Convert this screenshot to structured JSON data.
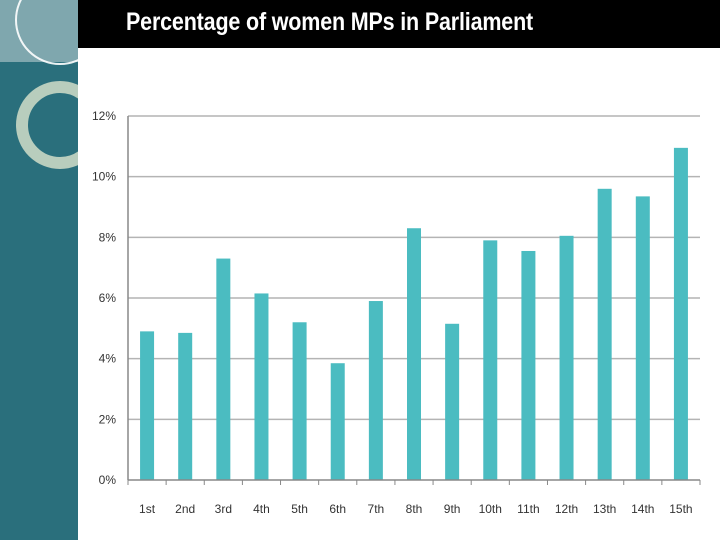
{
  "slide": {
    "title": "Percentage of women MPs in Parliament"
  },
  "colors": {
    "bar": "#4bbcc1",
    "grid": "#b4b4b4",
    "axis": "#888888",
    "sidebar": "#2a6f7c",
    "sidebar_panel": "#7fa7ae",
    "title_bg": "#000000",
    "title_text": "#ffffff"
  },
  "chart_data": {
    "type": "bar",
    "title": "Percentage of women MPs in Parliament",
    "xlabel": "",
    "ylabel": "",
    "categories": [
      "1st",
      "2nd",
      "3rd",
      "4th",
      "5th",
      "6th",
      "7th",
      "8th",
      "9th",
      "10th",
      "11th",
      "12th",
      "13th",
      "14th",
      "15th"
    ],
    "values": [
      4.9,
      4.85,
      7.3,
      6.15,
      5.2,
      3.85,
      5.9,
      8.3,
      5.15,
      7.9,
      7.55,
      8.05,
      9.6,
      9.35,
      10.95
    ],
    "value_format": "percent",
    "ylim": [
      0,
      12
    ],
    "yticks": [
      "0%",
      "2%",
      "4%",
      "6%",
      "8%",
      "10%",
      "12%"
    ],
    "ytick_values": [
      0,
      2,
      4,
      6,
      8,
      10,
      12
    ],
    "grid": true,
    "legend": "none"
  }
}
